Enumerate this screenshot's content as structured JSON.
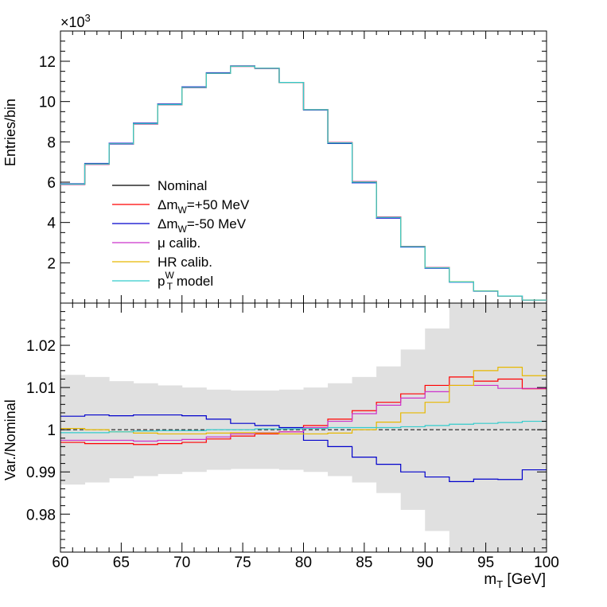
{
  "chart_data": [
    {
      "type": "step",
      "panel": "top",
      "ylabel": "Entries/bin",
      "exponent_label": "×10",
      "exponent_power": "3",
      "ylim": [
        0,
        13.5
      ],
      "yticks": [
        2,
        4,
        6,
        8,
        10,
        12
      ],
      "xlim": [
        60,
        100
      ],
      "bin_edges": [
        60,
        62,
        64,
        66,
        68,
        70,
        72,
        74,
        76,
        78,
        80,
        82,
        84,
        86,
        88,
        90,
        92,
        94,
        96,
        98,
        100
      ],
      "series": [
        {
          "name": "Nominal",
          "legend": "Nominal",
          "color": "#000000",
          "values": [
            5.9,
            6.9,
            7.9,
            8.9,
            9.85,
            10.7,
            11.4,
            11.75,
            11.65,
            10.95,
            9.6,
            7.95,
            6.0,
            4.25,
            2.8,
            1.75,
            1.05,
            0.6,
            0.35,
            0.15
          ]
        },
        {
          "name": "dmw_plus",
          "legend": "Δm",
          "legend_sub": "W",
          "legend_tail": "=+50 MeV",
          "color": "#ff0000",
          "values": [
            5.88,
            6.88,
            7.88,
            8.88,
            9.84,
            10.69,
            11.39,
            11.74,
            11.64,
            10.95,
            9.61,
            7.97,
            6.03,
            4.28,
            2.82,
            1.77,
            1.06,
            0.61,
            0.35,
            0.15
          ]
        },
        {
          "name": "dmw_minus",
          "legend": "Δm",
          "legend_sub": "W",
          "legend_tail": "=-50 MeV",
          "color": "#0000cc",
          "values": [
            5.92,
            6.93,
            7.93,
            8.93,
            9.88,
            10.73,
            11.43,
            11.77,
            11.66,
            10.95,
            9.58,
            7.92,
            5.97,
            4.22,
            2.78,
            1.73,
            1.04,
            0.59,
            0.35,
            0.15
          ]
        },
        {
          "name": "mu_calib",
          "legend": "μ calib.",
          "color": "#cc33cc",
          "values": [
            5.88,
            6.88,
            7.88,
            8.88,
            9.84,
            10.69,
            11.39,
            11.74,
            11.64,
            10.95,
            9.61,
            7.96,
            6.03,
            4.28,
            2.82,
            1.77,
            1.06,
            0.61,
            0.35,
            0.15
          ]
        },
        {
          "name": "hr_calib",
          "legend": "HR calib.",
          "color": "#e6b800",
          "values": [
            5.9,
            6.9,
            7.9,
            8.9,
            9.85,
            10.7,
            11.4,
            11.75,
            11.65,
            10.95,
            9.6,
            7.95,
            6.01,
            4.26,
            2.81,
            1.76,
            1.06,
            0.61,
            0.35,
            0.15
          ]
        },
        {
          "name": "pt_model",
          "legend": "p",
          "legend_sub": "T",
          "legend_sup": "W",
          "legend_tail": " model",
          "color": "#33cccc",
          "values": [
            5.9,
            6.9,
            7.9,
            8.9,
            9.85,
            10.7,
            11.4,
            11.75,
            11.65,
            10.95,
            9.6,
            7.95,
            6.0,
            4.25,
            2.8,
            1.75,
            1.05,
            0.6,
            0.35,
            0.15
          ]
        }
      ]
    },
    {
      "type": "step",
      "panel": "bottom",
      "ylabel": "Var./Nominal",
      "xlabel": "m",
      "xlabel_sub": "T",
      "xlabel_tail": " [GeV]",
      "ylim": [
        0.971,
        1.03
      ],
      "yticks": [
        0.98,
        0.99,
        1,
        1.01,
        1.02
      ],
      "ytick_labels": [
        "0.98",
        "0.99",
        "1",
        "1.01",
        "1.02"
      ],
      "xlim": [
        60,
        100
      ],
      "xticks": [
        60,
        65,
        70,
        75,
        80,
        85,
        90,
        95,
        100
      ],
      "xtick_labels": [
        "60",
        "65",
        "70",
        "75",
        "80",
        "85",
        "90",
        "95",
        "100"
      ],
      "bin_edges": [
        60,
        62,
        64,
        66,
        68,
        70,
        72,
        74,
        76,
        78,
        80,
        82,
        84,
        86,
        88,
        90,
        92,
        94,
        96,
        98,
        100
      ],
      "reference_line": 1.0,
      "uncertainty_band": {
        "color": "#e0e0e0",
        "half_width": [
          0.013,
          0.0125,
          0.0115,
          0.011,
          0.0105,
          0.01,
          0.0095,
          0.0093,
          0.0093,
          0.0095,
          0.01,
          0.011,
          0.0125,
          0.015,
          0.019,
          0.024,
          0.033,
          0.033,
          0.033,
          0.033
        ]
      },
      "series": [
        {
          "name": "dmw_plus",
          "color": "#ff0000",
          "values": [
            0.997,
            0.9967,
            0.9967,
            0.9965,
            0.9967,
            0.997,
            0.9978,
            0.9985,
            0.999,
            0.9995,
            1.001,
            1.0025,
            1.0045,
            1.0065,
            1.0085,
            1.0105,
            1.0125,
            1.0115,
            1.012,
            1.0097
          ]
        },
        {
          "name": "dmw_minus",
          "color": "#0000cc",
          "values": [
            1.0032,
            1.0035,
            1.0033,
            1.0035,
            1.0035,
            1.0033,
            1.0025,
            1.0015,
            1.001,
            1.0005,
            0.9975,
            0.996,
            0.9935,
            0.9918,
            0.99,
            0.9888,
            0.9877,
            0.9883,
            0.9882,
            0.9905
          ]
        },
        {
          "name": "mu_calib",
          "color": "#cc33cc",
          "values": [
            0.9975,
            0.9975,
            0.9975,
            0.9973,
            0.9975,
            0.9977,
            0.9983,
            0.999,
            0.9993,
            0.9995,
            1.0005,
            1.002,
            1.0038,
            1.0058,
            1.0075,
            1.009,
            1.0105,
            1.0105,
            1.0098,
            1.0098
          ]
        },
        {
          "name": "hr_calib",
          "color": "#e6b800",
          "values": [
            1.0003,
            1.0,
            0.9995,
            0.9992,
            0.999,
            0.999,
            0.9992,
            0.9993,
            0.9992,
            0.999,
            0.999,
            0.9992,
            1.0,
            1.0018,
            1.004,
            1.0065,
            1.0105,
            1.014,
            1.0148,
            1.0128
          ]
        },
        {
          "name": "pt_model",
          "color": "#33cccc",
          "values": [
            0.9993,
            0.9993,
            0.9995,
            0.9997,
            0.9998,
            0.9998,
            1.0,
            1.0,
            1.0002,
            1.0002,
            1.0003,
            1.0005,
            1.0005,
            1.0005,
            1.0007,
            1.001,
            1.0013,
            1.0015,
            1.0017,
            1.002
          ]
        }
      ]
    }
  ]
}
